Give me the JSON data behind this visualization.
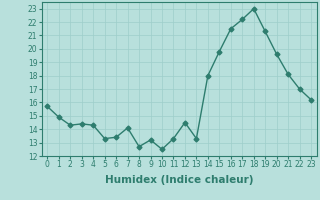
{
  "x": [
    0,
    1,
    2,
    3,
    4,
    5,
    6,
    7,
    8,
    9,
    10,
    11,
    12,
    13,
    14,
    15,
    16,
    17,
    18,
    19,
    20,
    21,
    22,
    23
  ],
  "y": [
    15.7,
    14.9,
    14.3,
    14.4,
    14.3,
    13.3,
    13.4,
    14.1,
    12.7,
    13.2,
    12.5,
    13.3,
    14.5,
    13.3,
    18.0,
    19.8,
    21.5,
    22.2,
    23.0,
    21.3,
    19.6,
    18.1,
    17.0,
    16.2
  ],
  "line_color": "#2e7d6e",
  "bg_color": "#b8e0dc",
  "grid_color": "#9ececa",
  "xlabel": "Humidex (Indice chaleur)",
  "ylim": [
    12,
    23.5
  ],
  "xlim": [
    -0.5,
    23.5
  ],
  "yticks": [
    12,
    13,
    14,
    15,
    16,
    17,
    18,
    19,
    20,
    21,
    22,
    23
  ],
  "xticks": [
    0,
    1,
    2,
    3,
    4,
    5,
    6,
    7,
    8,
    9,
    10,
    11,
    12,
    13,
    14,
    15,
    16,
    17,
    18,
    19,
    20,
    21,
    22,
    23
  ],
  "xtick_labels": [
    "0",
    "1",
    "2",
    "3",
    "4",
    "5",
    "6",
    "7",
    "8",
    "9",
    "10",
    "11",
    "12",
    "13",
    "14",
    "15",
    "16",
    "17",
    "18",
    "19",
    "20",
    "21",
    "22",
    "23"
  ],
  "marker": "D",
  "marker_size": 2.5,
  "line_width": 1.0,
  "tick_fontsize": 5.5,
  "xlabel_fontsize": 7.5
}
